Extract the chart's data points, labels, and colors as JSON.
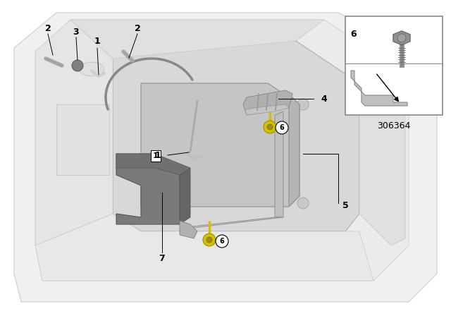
{
  "bg_color": "#ffffff",
  "diagram_number": "306364",
  "floor_color": "#e8e8e8",
  "floor_edge": "#cccccc",
  "recess_color": "#d0d0d0",
  "battery_top": "#c0c0c0",
  "battery_front": "#b0b0b0",
  "battery_right": "#a8a8a8",
  "holder_color": "#808080",
  "strap_color": "#c8c8c8",
  "clamp_color": "#b8b8b8",
  "yellow": "#d4c000",
  "white": "#ffffff",
  "black": "#000000",
  "light_gray": "#d0d0d0",
  "med_gray": "#a8a8a8",
  "dark_gray": "#707070",
  "border_gray": "#aaaaaa"
}
